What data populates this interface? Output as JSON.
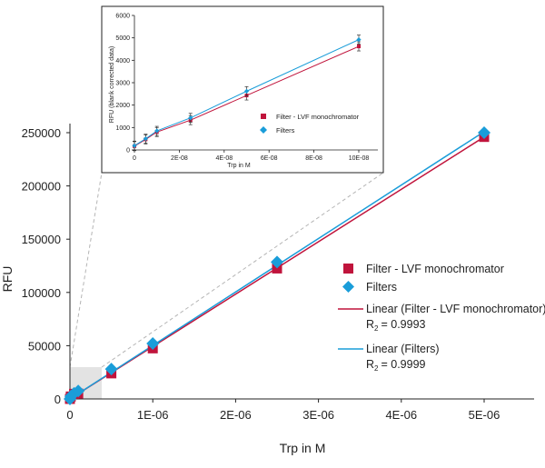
{
  "chart_data": [
    {
      "type": "scatter",
      "xlabel": "Trp in M",
      "ylabel": "RFU",
      "xlim": [
        0,
        5.7e-06
      ],
      "ylim": [
        0,
        270000
      ],
      "x_ticks": [
        0,
        1e-06,
        2e-06,
        3e-06,
        4e-06,
        5e-06
      ],
      "x_tick_labels": [
        "0",
        "1E-06",
        "2E-06",
        "3E-06",
        "4E-06",
        "5E-06"
      ],
      "y_ticks": [
        0,
        50000,
        100000,
        150000,
        200000,
        250000
      ],
      "y_tick_labels": [
        "0",
        "50000",
        "100000",
        "150000",
        "200000",
        "250000"
      ],
      "series": [
        {
          "name": "Filter - LVF monochromator",
          "marker": "square",
          "color": "#c0143c",
          "x": [
            0,
            1e-08,
            5e-08,
            1e-07,
            5e-07,
            1e-06,
            2.5e-06,
            5e-06
          ],
          "y": [
            0,
            2300,
            4800,
            5000,
            24000,
            47500,
            122500,
            246000
          ]
        },
        {
          "name": "Filters",
          "marker": "diamond",
          "color": "#1a9dd9",
          "x": [
            0,
            1e-08,
            5e-08,
            1e-07,
            5e-07,
            1e-06,
            2.5e-06,
            5e-06
          ],
          "y": [
            0,
            2500,
            5200,
            7500,
            28000,
            52000,
            128500,
            250000
          ]
        }
      ],
      "trendlines": [
        {
          "name": "Linear (Filter - LVF monochromator)",
          "color": "#c0143c",
          "r2_label": "R",
          "r2_sub": "2",
          "r2_value": "= 0.9993",
          "x": [
            0,
            5e-06
          ],
          "y": [
            0,
            246000
          ]
        },
        {
          "name": "Linear (Filters)",
          "color": "#1a9dd9",
          "r2_label": "R",
          "r2_sub": "2",
          "r2_value": "= 0.9999",
          "x": [
            0,
            5e-06
          ],
          "y": [
            0,
            251000
          ]
        }
      ],
      "legend": "right",
      "grid": false
    },
    {
      "type": "scatter",
      "xlabel": "Trp in M",
      "ylabel": "RFU (blank corrected data)",
      "xlim": [
        0,
        1.1e-07
      ],
      "ylim": [
        0,
        6000
      ],
      "x_ticks": [
        0,
        2e-08,
        4e-08,
        6e-08,
        8e-08,
        1e-07
      ],
      "x_tick_labels": [
        "0",
        "2E-08",
        "4E-08",
        "6E-08",
        "8E-08",
        "10E-08"
      ],
      "y_ticks": [
        0,
        1000,
        2000,
        3000,
        4000,
        5000,
        6000
      ],
      "y_tick_labels": [
        "0",
        "1000",
        "2000",
        "3000",
        "4000",
        "5000",
        "6000"
      ],
      "series": [
        {
          "name": "Filter - LVF monochromator",
          "marker": "square",
          "color": "#c0143c",
          "x": [
            0,
            5e-09,
            1e-08,
            2.5e-08,
            5e-08,
            1e-07
          ],
          "y": [
            170,
            470,
            800,
            1330,
            2430,
            4620
          ]
        },
        {
          "name": "Filters",
          "marker": "diamond",
          "color": "#1a9dd9",
          "x": [
            0,
            5e-09,
            1e-08,
            2.5e-08,
            5e-08,
            1e-07
          ],
          "y": [
            190,
            500,
            850,
            1430,
            2620,
            4920
          ]
        }
      ],
      "legend": "bottom-right",
      "grid": false
    }
  ]
}
